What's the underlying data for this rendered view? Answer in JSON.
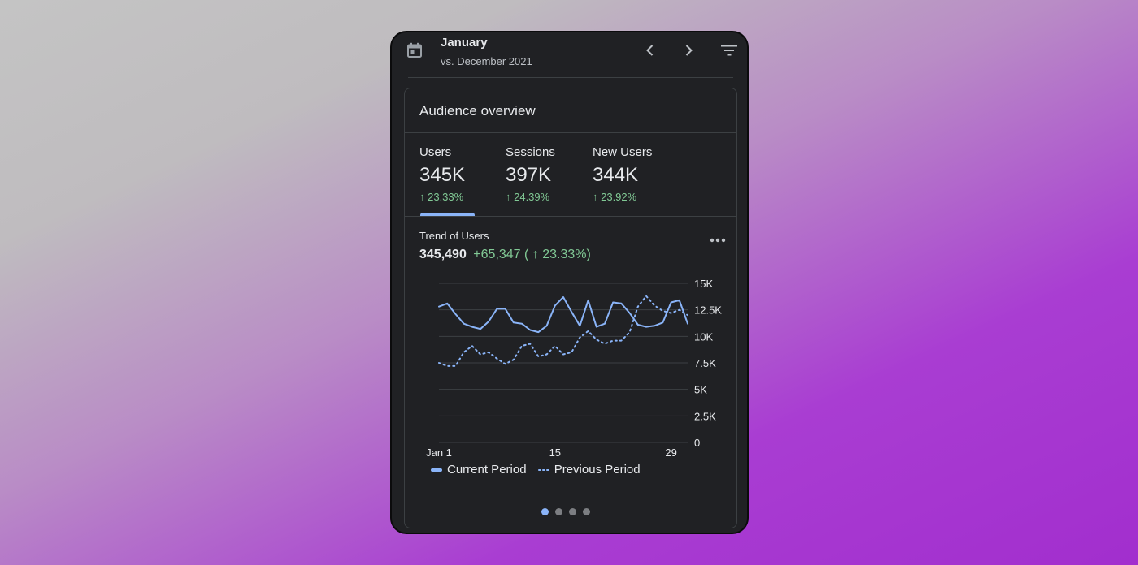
{
  "header": {
    "title": "January",
    "subtitle": "vs. December 2021",
    "icons": {
      "calendar": "calendar-icon",
      "prev": "chevron-left-icon",
      "next": "chevron-right-icon",
      "filter": "filter-icon"
    }
  },
  "card": {
    "title": "Audience overview",
    "metrics": [
      {
        "label": "Users",
        "value": "345K",
        "change": "↑ 23.33%"
      },
      {
        "label": "Sessions",
        "value": "397K",
        "change": "↑ 24.39%"
      },
      {
        "label": "New Users",
        "value": "344K",
        "change": "↑ 23.92%"
      }
    ],
    "selected_metric": "Users"
  },
  "trend": {
    "label": "Trend of Users",
    "value": "345,490",
    "delta": "+65,347 ( ↑ 23.33%)"
  },
  "colors": {
    "accent": "#8ab4f8",
    "positive": "#81c995",
    "background": "#202124"
  },
  "chart_data": {
    "type": "line",
    "x": [
      1,
      2,
      3,
      4,
      5,
      6,
      7,
      8,
      9,
      10,
      11,
      12,
      13,
      14,
      15,
      16,
      17,
      18,
      19,
      20,
      21,
      22,
      23,
      24,
      25,
      26,
      27,
      28,
      29,
      30,
      31
    ],
    "x_tick_labels": [
      {
        "x": 1,
        "label": "Jan 1"
      },
      {
        "x": 15,
        "label": "15"
      },
      {
        "x": 29,
        "label": "29"
      }
    ],
    "y_ticks": [
      "15K",
      "12.5K",
      "10K",
      "7.5K",
      "5K",
      "2.5K",
      "0"
    ],
    "ylim": [
      0,
      15000
    ],
    "series": [
      {
        "name": "Current Period",
        "style": "solid",
        "values": [
          12800,
          13100,
          12100,
          11200,
          10900,
          10700,
          11400,
          12600,
          12600,
          11300,
          11200,
          10600,
          10400,
          11000,
          12900,
          13700,
          12300,
          11000,
          13400,
          10900,
          11200,
          13200,
          13100,
          12200,
          11100,
          10900,
          11000,
          11300,
          13200,
          13400,
          11200
        ]
      },
      {
        "name": "Previous Period",
        "style": "dotted",
        "values": [
          7500,
          7200,
          7200,
          8500,
          9100,
          8300,
          8500,
          7900,
          7400,
          7800,
          9100,
          9300,
          8100,
          8300,
          9100,
          8300,
          8500,
          9900,
          10500,
          9700,
          9300,
          9600,
          9600,
          10400,
          12800,
          13800,
          12900,
          12400,
          12200,
          12500,
          12000
        ]
      }
    ],
    "legend_position": "bottom",
    "grid": true
  },
  "pagination": {
    "pages": 4,
    "active": 1
  }
}
